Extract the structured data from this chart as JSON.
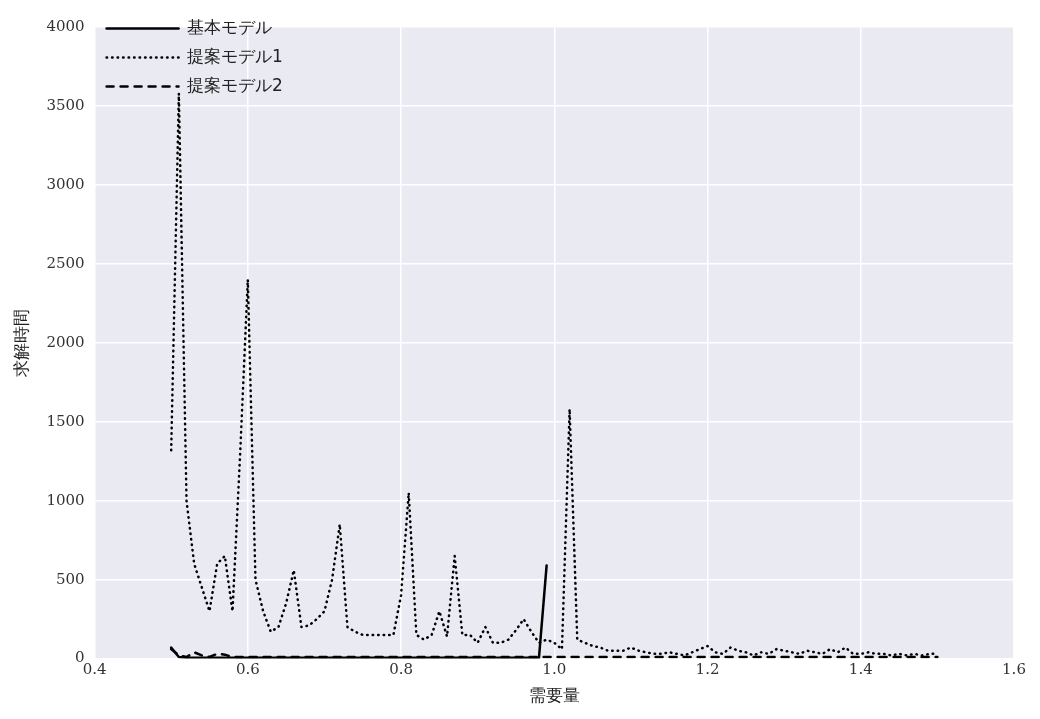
{
  "chart_data": {
    "type": "line",
    "xlabel": "需要量",
    "ylabel": "求解時間",
    "xlim": [
      0.4,
      1.6
    ],
    "xticks": [
      0.4,
      0.6,
      0.8,
      {
        "value": 1,
        "label": "1.0"
      },
      1.2,
      1.4,
      1.6
    ],
    "ylim": [
      0,
      4000
    ],
    "yticks": [
      0,
      500,
      1000,
      1500,
      2000,
      2500,
      3000,
      3500,
      4000
    ],
    "grid": true,
    "legend": "top left",
    "marker": "none",
    "x": [
      0.5,
      0.51,
      0.52,
      0.53,
      0.54,
      0.55,
      0.56,
      0.57,
      0.58,
      0.59,
      0.6,
      0.61,
      0.62,
      0.63,
      0.64,
      0.65,
      0.66,
      0.67,
      0.68,
      0.69,
      0.7,
      0.71,
      0.72,
      0.73,
      0.74,
      0.75,
      0.76,
      0.77,
      0.78,
      0.79,
      0.8,
      0.81,
      0.82,
      0.83,
      0.84,
      0.85,
      0.86,
      0.87,
      0.88,
      0.89,
      0.9,
      0.91,
      0.92,
      0.93,
      0.94,
      0.95,
      0.96,
      0.97,
      0.98,
      0.99,
      1.0,
      1.01,
      1.02,
      1.03,
      1.04,
      1.05,
      1.06,
      1.07,
      1.08,
      1.09,
      1.1,
      1.11,
      1.12,
      1.13,
      1.14,
      1.15,
      1.16,
      1.17,
      1.18,
      1.19,
      1.2,
      1.21,
      1.22,
      1.23,
      1.24,
      1.25,
      1.26,
      1.27,
      1.28,
      1.29,
      1.3,
      1.31,
      1.32,
      1.33,
      1.34,
      1.35,
      1.36,
      1.37,
      1.38,
      1.39,
      1.4,
      1.41,
      1.42,
      1.43,
      1.44,
      1.45,
      1.46,
      1.47,
      1.48,
      1.49,
      1.5
    ],
    "series": [
      {
        "name": "基本モデル",
        "color": "#000000",
        "line_style": "solid",
        "x": [
          0.5,
          0.51,
          0.52,
          0.53,
          0.54,
          0.55,
          0.56,
          0.57,
          0.58,
          0.59,
          0.6,
          0.61,
          0.62,
          0.63,
          0.64,
          0.65,
          0.66,
          0.67,
          0.68,
          0.69,
          0.7,
          0.71,
          0.72,
          0.73,
          0.74,
          0.75,
          0.76,
          0.77,
          0.78,
          0.79,
          0.8,
          0.81,
          0.82,
          0.83,
          0.84,
          0.85,
          0.86,
          0.87,
          0.88,
          0.89,
          0.9,
          0.91,
          0.92,
          0.93,
          0.94,
          0.95,
          0.96,
          0.97,
          0.98,
          0.99
        ],
        "values": [
          70,
          10,
          5,
          5,
          5,
          5,
          5,
          5,
          5,
          5,
          5,
          5,
          5,
          5,
          5,
          5,
          5,
          5,
          5,
          5,
          5,
          5,
          5,
          5,
          5,
          5,
          5,
          5,
          5,
          5,
          5,
          5,
          5,
          5,
          5,
          5,
          5,
          5,
          5,
          5,
          5,
          5,
          5,
          5,
          5,
          5,
          5,
          5,
          5,
          590
        ]
      },
      {
        "name": "提案モデル1",
        "color": "#000000",
        "line_style": "dotted",
        "values": [
          1320,
          3580,
          1000,
          600,
          450,
          300,
          600,
          650,
          300,
          1300,
          2400,
          500,
          300,
          170,
          200,
          350,
          560,
          200,
          210,
          250,
          300,
          500,
          850,
          200,
          170,
          150,
          150,
          150,
          150,
          150,
          400,
          1050,
          150,
          120,
          150,
          300,
          140,
          650,
          150,
          150,
          100,
          200,
          100,
          100,
          120,
          180,
          250,
          170,
          100,
          120,
          100,
          60,
          1580,
          120,
          100,
          80,
          70,
          50,
          50,
          50,
          70,
          50,
          40,
          30,
          30,
          40,
          30,
          20,
          40,
          60,
          80,
          40,
          30,
          70,
          50,
          40,
          20,
          40,
          30,
          60,
          50,
          40,
          30,
          50,
          40,
          30,
          60,
          40,
          70,
          30,
          30,
          40,
          30,
          30,
          20,
          30,
          20,
          30,
          20,
          30,
          30
        ]
      },
      {
        "name": "提案モデル2",
        "color": "#000000",
        "line_style": "dashed",
        "values": [
          60,
          20,
          10,
          40,
          20,
          10,
          30,
          25,
          10,
          10,
          10,
          10,
          10,
          10,
          10,
          10,
          10,
          10,
          10,
          10,
          10,
          10,
          10,
          10,
          10,
          10,
          10,
          10,
          10,
          10,
          10,
          10,
          10,
          10,
          10,
          10,
          10,
          10,
          10,
          10,
          10,
          10,
          10,
          10,
          10,
          10,
          10,
          10,
          10,
          10,
          10,
          10,
          10,
          10,
          10,
          10,
          10,
          10,
          10,
          10,
          10,
          10,
          10,
          10,
          10,
          10,
          10,
          10,
          10,
          10,
          10,
          10,
          10,
          10,
          10,
          10,
          10,
          10,
          10,
          10,
          10,
          10,
          10,
          10,
          10,
          10,
          10,
          10,
          10,
          10,
          10,
          10,
          10,
          10,
          10,
          10,
          10,
          10,
          10,
          10,
          10
        ]
      }
    ]
  }
}
